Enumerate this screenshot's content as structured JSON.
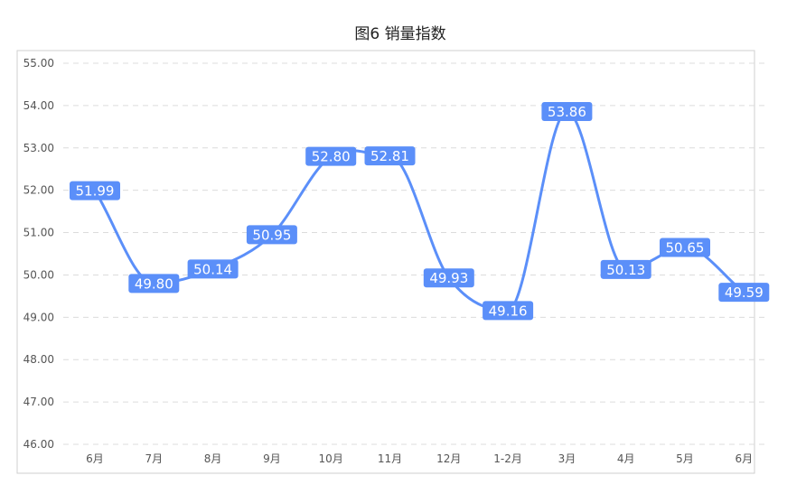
{
  "chart_data": {
    "type": "line",
    "title": "图6 销量指数",
    "xlabel": "",
    "ylabel": "",
    "categories": [
      "6月",
      "7月",
      "8月",
      "9月",
      "10月",
      "11月",
      "12月",
      "1-2月",
      "3月",
      "4月",
      "5月",
      "6月"
    ],
    "series": [
      {
        "values": [
          51.99,
          49.8,
          50.14,
          50.95,
          52.8,
          52.81,
          49.93,
          49.16,
          53.86,
          50.13,
          50.65,
          49.59
        ],
        "labels": [
          "51.99",
          "49.80",
          "50.14",
          "50.95",
          "52.80",
          "52.81",
          "49.93",
          "49.16",
          "53.86",
          "50.13",
          "50.65",
          "49.59"
        ],
        "color": "#5b8ff9"
      }
    ],
    "ylim": [
      46,
      55
    ],
    "yticks": [
      "46.00",
      "47.00",
      "48.00",
      "49.00",
      "50.00",
      "51.00",
      "52.00",
      "53.00",
      "54.00",
      "55.00"
    ],
    "grid": true,
    "legend": "none"
  }
}
